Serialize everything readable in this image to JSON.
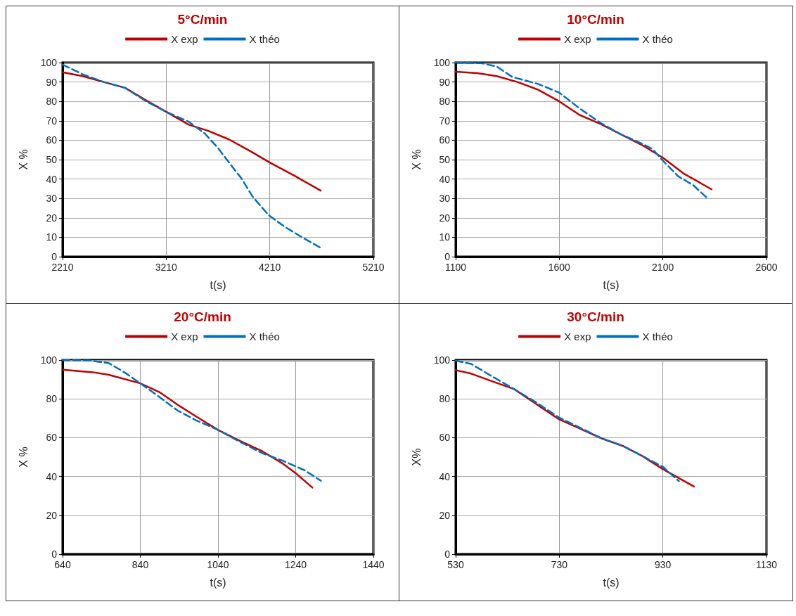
{
  "chart_data": [
    {
      "type": "line",
      "title": "5°C/min",
      "xlabel": "t(s)",
      "ylabel": "X %",
      "xlim": [
        2210,
        5210
      ],
      "xticks": [
        2210,
        3210,
        4210,
        5210
      ],
      "ylim": [
        0,
        100
      ],
      "yticks": [
        0,
        10,
        20,
        30,
        40,
        50,
        60,
        70,
        80,
        90,
        100
      ],
      "grid": true,
      "legend": "top",
      "marker": "none",
      "series": [
        {
          "name": "X exp",
          "color": "#c00000",
          "line_style": "solid",
          "x": [
            2210,
            2402,
            2607,
            2813,
            3018,
            3215,
            3428,
            3607,
            3813,
            4018,
            4210,
            4454,
            4702
          ],
          "values": [
            95,
            93,
            90,
            87,
            80.5,
            74.5,
            68,
            65,
            60.5,
            54.5,
            48.5,
            41.5,
            34
          ]
        },
        {
          "name": "X théo",
          "color": "#0070c0",
          "line_style": "dashed",
          "x": [
            2210,
            2402,
            2607,
            2813,
            3018,
            3215,
            3428,
            3582,
            3710,
            3838,
            3941,
            4043,
            4197,
            4351,
            4505,
            4702
          ],
          "values": [
            99,
            94,
            90,
            87,
            80,
            74.5,
            69.5,
            63.5,
            56,
            47,
            40,
            31,
            21.5,
            15.5,
            10.5,
            4.5
          ]
        }
      ]
    },
    {
      "type": "line",
      "title": "10°C/min",
      "xlabel": "t(s)",
      "ylabel": "X %",
      "xlim": [
        1100,
        2600
      ],
      "xticks": [
        1100,
        1600,
        2100,
        2600
      ],
      "ylim": [
        0,
        100
      ],
      "yticks": [
        0,
        10,
        20,
        30,
        40,
        50,
        60,
        70,
        80,
        90,
        100
      ],
      "grid": true,
      "legend": "top",
      "marker": "none",
      "series": [
        {
          "name": "X exp",
          "color": "#c00000",
          "line_style": "solid",
          "x": [
            1100,
            1204,
            1298,
            1398,
            1498,
            1600,
            1698,
            1798,
            1898,
            1998,
            2100,
            2198,
            2335
          ],
          "values": [
            95.3,
            94.6,
            93,
            90,
            86,
            80,
            73,
            68.4,
            63,
            57.6,
            51,
            43,
            34.7
          ]
        },
        {
          "name": "X théo",
          "color": "#0070c0",
          "line_style": "dashed",
          "x": [
            1100,
            1223,
            1298,
            1373,
            1498,
            1600,
            1698,
            1798,
            1898,
            1998,
            2048,
            2100,
            2173,
            2248,
            2316
          ],
          "values": [
            100,
            99.7,
            98,
            92.6,
            89,
            84.5,
            76.4,
            69,
            63,
            58.3,
            55.6,
            49.5,
            41.5,
            36.7,
            30
          ]
        }
      ]
    },
    {
      "type": "line",
      "title": "20°C/min",
      "xlabel": "t(s)",
      "ylabel": "X %",
      "xlim": [
        640,
        1440
      ],
      "xticks": [
        640,
        840,
        1040,
        1240,
        1440
      ],
      "ylim": [
        0,
        100
      ],
      "yticks": [
        0,
        20,
        40,
        60,
        80,
        100
      ],
      "grid": true,
      "legend": "top",
      "marker": "none",
      "series": [
        {
          "name": "X exp",
          "color": "#c00000",
          "line_style": "solid",
          "x": [
            640,
            718,
            759,
            840,
            889,
            936,
            983,
            1040,
            1100,
            1154,
            1208,
            1240,
            1283
          ],
          "values": [
            95,
            93.7,
            92.4,
            88,
            83.5,
            77,
            71,
            64,
            58,
            53,
            46.5,
            41.7,
            34.3
          ]
        },
        {
          "name": "X théo",
          "color": "#0070c0",
          "line_style": "dashed",
          "x": [
            640,
            711,
            759,
            799,
            840,
            889,
            936,
            983,
            1040,
            1100,
            1154,
            1208,
            1262,
            1305
          ],
          "values": [
            100,
            99.7,
            98.4,
            93.7,
            88,
            81,
            74,
            69,
            64,
            57.5,
            52,
            48,
            43.3,
            37.8
          ]
        }
      ]
    },
    {
      "type": "line",
      "title": "30°C/min",
      "xlabel": "t(s)",
      "ylabel": "X%",
      "xlim": [
        530,
        1130
      ],
      "xticks": [
        530,
        730,
        930,
        1130
      ],
      "ylim": [
        0,
        100
      ],
      "yticks": [
        0,
        20,
        40,
        60,
        80,
        100
      ],
      "grid": true,
      "legend": "top",
      "marker": "none",
      "series": [
        {
          "name": "X exp",
          "color": "#c00000",
          "line_style": "solid",
          "x": [
            530,
            560,
            601,
            643,
            684,
            730,
            771,
            812,
            854,
            890,
            930,
            990
          ],
          "values": [
            94.8,
            93,
            89,
            85,
            77.6,
            69.4,
            64.5,
            59.6,
            55.6,
            50.6,
            43.8,
            34.8
          ]
        },
        {
          "name": "X théo",
          "color": "#0070c0",
          "line_style": "dashed",
          "x": [
            530,
            560,
            601,
            643,
            684,
            730,
            771,
            812,
            854,
            890,
            930,
            961
          ],
          "values": [
            99.7,
            98,
            91.5,
            85,
            78.4,
            70.3,
            65,
            59.6,
            55.6,
            50.6,
            45,
            37.6
          ]
        }
      ]
    }
  ]
}
